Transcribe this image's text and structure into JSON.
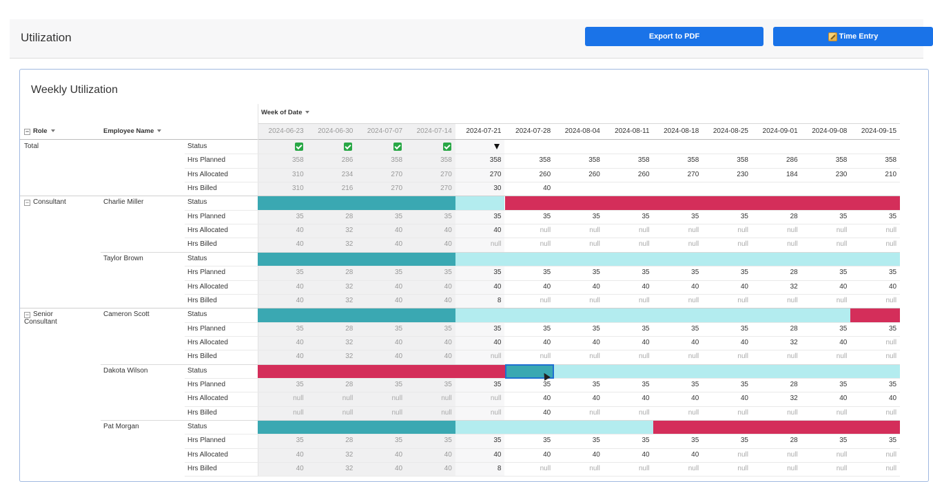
{
  "page": {
    "title": "Utilization"
  },
  "toolbar": {
    "export_label": "Export to PDF",
    "time_entry_label": "Time Entry"
  },
  "panel": {
    "title": "Weekly Utilization"
  },
  "table": {
    "week_header": "Week of Date",
    "role_header": "Role",
    "employee_header": "Employee Name",
    "weeks": [
      "2024-06-23",
      "2024-06-30",
      "2024-07-07",
      "2024-07-14",
      "2024-07-21",
      "2024-07-28",
      "2024-08-04",
      "2024-08-11",
      "2024-08-18",
      "2024-08-25",
      "2024-09-01",
      "2024-09-08",
      "2024-09-15"
    ],
    "colors": {
      "green": "#3aa8b2",
      "cyan": "#b3ecef",
      "red": "#d42e5a"
    },
    "groups": [
      {
        "role": "Total",
        "employee": "",
        "status_type": "icons",
        "status_icons": [
          "check",
          "check",
          "check",
          "check",
          "triangle",
          "",
          "",
          "",
          "",
          "",
          "",
          "",
          ""
        ],
        "metrics": [
          {
            "label": "Hrs Planned",
            "values": [
              "358",
              "286",
              "358",
              "358",
              "358",
              "358",
              "358",
              "358",
              "358",
              "358",
              "286",
              "358",
              "358"
            ]
          },
          {
            "label": "Hrs Allocated",
            "values": [
              "310",
              "234",
              "270",
              "270",
              "270",
              "260",
              "260",
              "260",
              "270",
              "230",
              "184",
              "230",
              "210"
            ]
          },
          {
            "label": "Hrs Billed",
            "values": [
              "310",
              "216",
              "270",
              "270",
              "30",
              "40",
              "",
              "",
              "",
              "",
              "",
              "",
              ""
            ]
          }
        ]
      },
      {
        "role": "Consultant",
        "employee": "Charlie Miller",
        "status_type": "bar",
        "status_bar": [
          "green",
          "green",
          "green",
          "green",
          "cyan",
          "red",
          "red",
          "red",
          "red",
          "red",
          "red",
          "red",
          "red"
        ],
        "metrics": [
          {
            "label": "Hrs Planned",
            "values": [
              "35",
              "28",
              "35",
              "35",
              "35",
              "35",
              "35",
              "35",
              "35",
              "35",
              "28",
              "35",
              "35"
            ]
          },
          {
            "label": "Hrs Allocated",
            "values": [
              "40",
              "32",
              "40",
              "40",
              "40",
              "null",
              "null",
              "null",
              "null",
              "null",
              "null",
              "null",
              "null"
            ]
          },
          {
            "label": "Hrs Billed",
            "values": [
              "40",
              "32",
              "40",
              "40",
              "null",
              "null",
              "null",
              "null",
              "null",
              "null",
              "null",
              "null",
              "null"
            ]
          }
        ]
      },
      {
        "role": "",
        "employee": "Taylor Brown",
        "status_type": "bar",
        "status_bar": [
          "green",
          "green",
          "green",
          "green",
          "cyan",
          "cyan",
          "cyan",
          "cyan",
          "cyan",
          "cyan",
          "cyan",
          "cyan",
          "cyan"
        ],
        "metrics": [
          {
            "label": "Hrs Planned",
            "values": [
              "35",
              "28",
              "35",
              "35",
              "35",
              "35",
              "35",
              "35",
              "35",
              "35",
              "28",
              "35",
              "35"
            ]
          },
          {
            "label": "Hrs Allocated",
            "values": [
              "40",
              "32",
              "40",
              "40",
              "40",
              "40",
              "40",
              "40",
              "40",
              "40",
              "32",
              "40",
              "40"
            ]
          },
          {
            "label": "Hrs Billed",
            "values": [
              "40",
              "32",
              "40",
              "40",
              "8",
              "null",
              "null",
              "null",
              "null",
              "null",
              "null",
              "null",
              "null"
            ]
          }
        ]
      },
      {
        "role": "Senior\nConsultant",
        "employee": "Cameron Scott",
        "status_type": "bar",
        "status_bar": [
          "green",
          "green",
          "green",
          "green",
          "cyan",
          "cyan",
          "cyan",
          "cyan",
          "cyan",
          "cyan",
          "cyan",
          "cyan",
          "red"
        ],
        "metrics": [
          {
            "label": "Hrs Planned",
            "values": [
              "35",
              "28",
              "35",
              "35",
              "35",
              "35",
              "35",
              "35",
              "35",
              "35",
              "28",
              "35",
              "35"
            ]
          },
          {
            "label": "Hrs Allocated",
            "values": [
              "40",
              "32",
              "40",
              "40",
              "40",
              "40",
              "40",
              "40",
              "40",
              "40",
              "32",
              "40",
              "null"
            ]
          },
          {
            "label": "Hrs Billed",
            "values": [
              "40",
              "32",
              "40",
              "40",
              "null",
              "null",
              "null",
              "null",
              "null",
              "null",
              "null",
              "null",
              "null"
            ]
          }
        ]
      },
      {
        "role": "",
        "employee": "Dakota Wilson",
        "status_type": "bar",
        "status_bar": [
          "red",
          "red",
          "red",
          "red",
          "red",
          "green",
          "cyan",
          "cyan",
          "cyan",
          "cyan",
          "cyan",
          "cyan",
          "cyan"
        ],
        "metrics": [
          {
            "label": "Hrs Planned",
            "values": [
              "35",
              "28",
              "35",
              "35",
              "35",
              "35",
              "35",
              "35",
              "35",
              "35",
              "28",
              "35",
              "35"
            ]
          },
          {
            "label": "Hrs Allocated",
            "values": [
              "null",
              "null",
              "null",
              "null",
              "null",
              "40",
              "40",
              "40",
              "40",
              "40",
              "32",
              "40",
              "40"
            ]
          },
          {
            "label": "Hrs Billed",
            "values": [
              "null",
              "null",
              "null",
              "null",
              "null",
              "40",
              "null",
              "null",
              "null",
              "null",
              "null",
              "null",
              "null"
            ]
          }
        ]
      },
      {
        "role": "",
        "employee": "Pat Morgan",
        "status_type": "bar",
        "status_bar": [
          "green",
          "green",
          "green",
          "green",
          "cyan",
          "cyan",
          "cyan",
          "cyan",
          "red",
          "red",
          "red",
          "red",
          "red"
        ],
        "metrics": [
          {
            "label": "Hrs Planned",
            "values": [
              "35",
              "28",
              "35",
              "35",
              "35",
              "35",
              "35",
              "35",
              "35",
              "35",
              "28",
              "35",
              "35"
            ]
          },
          {
            "label": "Hrs Allocated",
            "values": [
              "40",
              "32",
              "40",
              "40",
              "40",
              "40",
              "40",
              "40",
              "40",
              "null",
              "null",
              "null",
              "null"
            ]
          },
          {
            "label": "Hrs Billed",
            "values": [
              "40",
              "32",
              "40",
              "40",
              "8",
              "null",
              "null",
              "null",
              "null",
              "null",
              "null",
              "null",
              "null"
            ]
          }
        ]
      }
    ],
    "status_label": "Status"
  }
}
